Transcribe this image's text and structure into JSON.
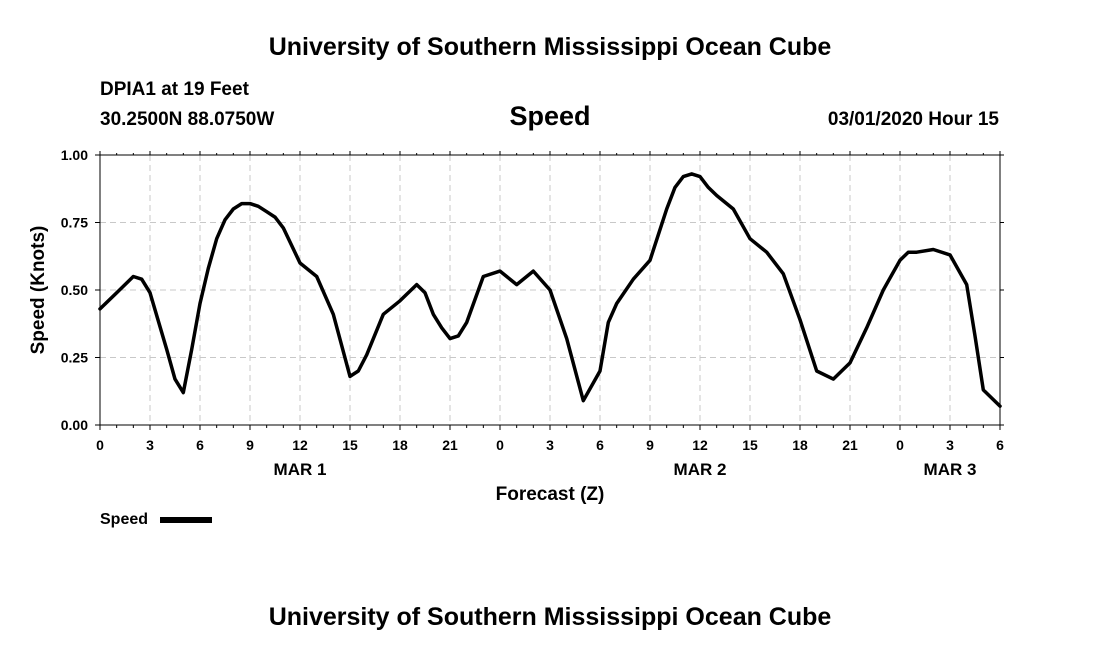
{
  "header": {
    "title": "University of Southern Mississippi Ocean Cube",
    "station": "DPIA1 at 19 Feet",
    "coords": "30.2500N 88.0750W",
    "parameter": "Speed",
    "datetime": "03/01/2020 Hour 15"
  },
  "footer": {
    "title": "University of Southern Mississippi Ocean Cube"
  },
  "legend": {
    "label": "Speed"
  },
  "chart_data": {
    "type": "line",
    "title": "Speed",
    "xlabel": "Forecast (Z)",
    "ylabel": "Speed (Knots)",
    "xlim": [
      0,
      54
    ],
    "ylim": [
      0,
      1.0
    ],
    "grid": true,
    "legend_position": "bottom-left",
    "x_ticks": [
      0,
      3,
      6,
      9,
      12,
      15,
      18,
      21,
      24,
      27,
      30,
      33,
      36,
      39,
      42,
      45,
      48,
      51,
      54
    ],
    "x_tick_labels": [
      "0",
      "3",
      "6",
      "9",
      "12",
      "15",
      "18",
      "21",
      "0",
      "3",
      "6",
      "9",
      "12",
      "15",
      "18",
      "21",
      "0",
      "3",
      "6"
    ],
    "y_ticks": [
      0,
      0.25,
      0.5,
      0.75,
      1.0
    ],
    "y_tick_labels": [
      "0.00",
      "0.25",
      "0.50",
      "0.75",
      "1.00"
    ],
    "day_labels": [
      {
        "x": 12,
        "label": "MAR 1"
      },
      {
        "x": 36,
        "label": "MAR 2"
      },
      {
        "x": 51,
        "label": "MAR 3"
      }
    ],
    "series": [
      {
        "name": "Speed",
        "color": "#000000",
        "x": [
          0,
          1,
          2,
          2.5,
          3,
          4,
          4.5,
          5,
          5.5,
          6,
          6.5,
          7,
          7.5,
          8,
          8.5,
          9,
          9.5,
          10,
          10.5,
          11,
          12,
          13,
          14,
          15,
          15.5,
          16,
          17,
          18,
          19,
          19.5,
          20,
          20.5,
          21,
          21.5,
          22,
          23,
          24,
          25,
          26,
          27,
          28,
          29,
          30,
          30.5,
          31,
          32,
          33,
          34,
          34.5,
          35,
          35.5,
          36,
          36.5,
          37,
          38,
          39,
          40,
          41,
          42,
          43,
          44,
          45,
          46,
          47,
          48,
          48.5,
          49,
          50,
          51,
          52,
          52.5,
          53,
          54
        ],
        "values": [
          0.43,
          0.49,
          0.55,
          0.54,
          0.49,
          0.28,
          0.17,
          0.12,
          0.28,
          0.45,
          0.58,
          0.69,
          0.76,
          0.8,
          0.82,
          0.82,
          0.81,
          0.79,
          0.77,
          0.73,
          0.6,
          0.55,
          0.41,
          0.18,
          0.2,
          0.26,
          0.41,
          0.46,
          0.52,
          0.49,
          0.41,
          0.36,
          0.32,
          0.33,
          0.38,
          0.55,
          0.57,
          0.52,
          0.57,
          0.5,
          0.32,
          0.09,
          0.2,
          0.38,
          0.45,
          0.54,
          0.61,
          0.8,
          0.88,
          0.92,
          0.93,
          0.92,
          0.88,
          0.85,
          0.8,
          0.69,
          0.64,
          0.56,
          0.39,
          0.2,
          0.17,
          0.23,
          0.36,
          0.5,
          0.61,
          0.64,
          0.64,
          0.65,
          0.63,
          0.52,
          0.33,
          0.13,
          0.07
        ]
      }
    ]
  }
}
